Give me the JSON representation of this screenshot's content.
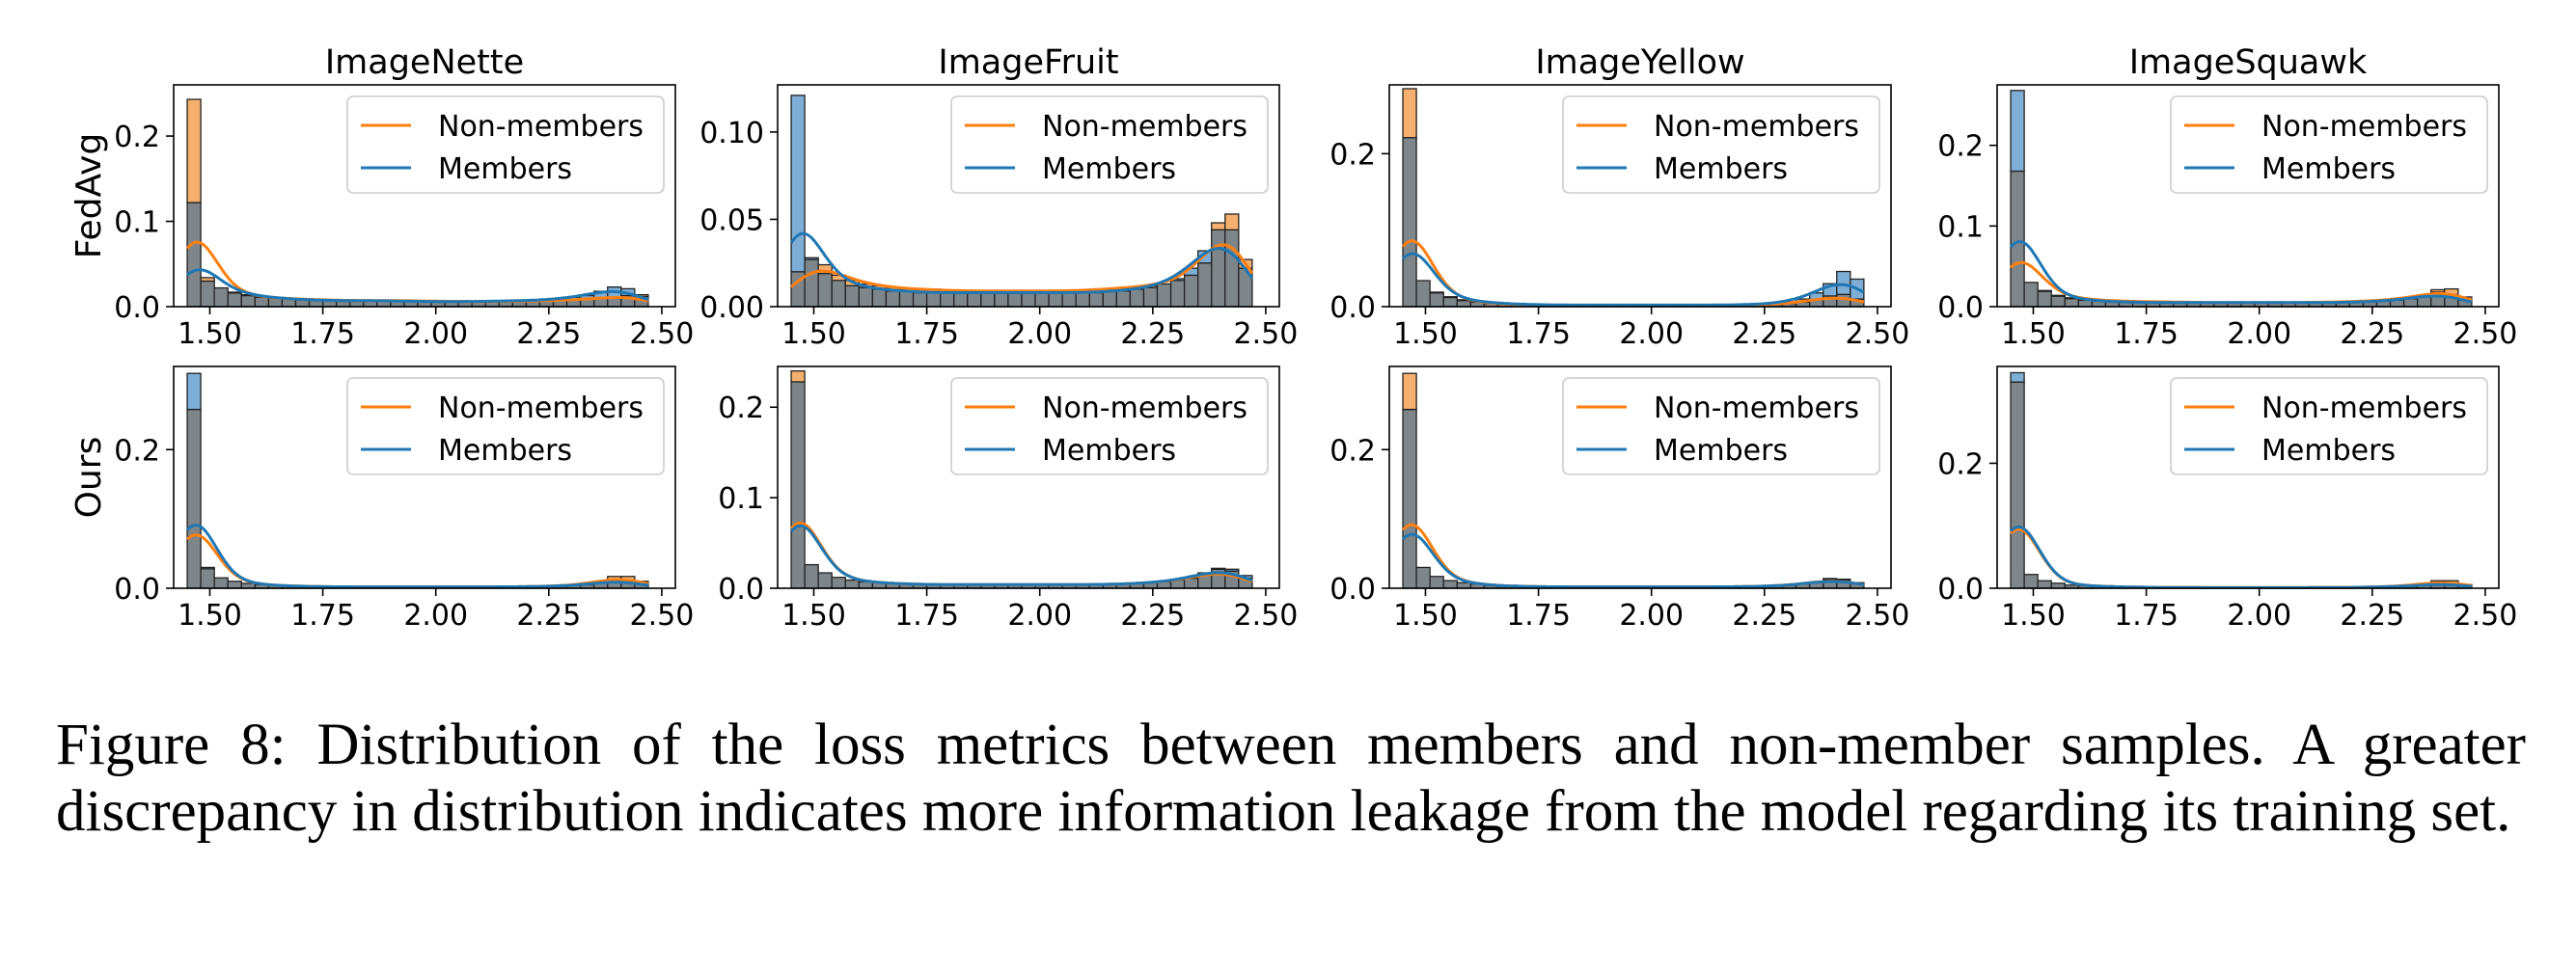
{
  "figure": {
    "column_titles": [
      "ImageNette",
      "ImageFruit",
      "ImageYellow",
      "ImageSquawk"
    ],
    "row_labels": [
      "FedAvg",
      "Ours"
    ],
    "legend": {
      "nonmembers": "Non-members",
      "members": "Members",
      "placement": "top-right"
    },
    "colors": {
      "nonmembers": "#ff7f0e",
      "members": "#1f77b4",
      "overlap": "#7f868a"
    }
  },
  "chart_data": [
    {
      "type": "histogram",
      "title": "ImageNette",
      "row": "FedAvg",
      "xlim": [
        1.42,
        2.53
      ],
      "ylim": [
        0,
        0.26
      ],
      "yticks": [
        0.0,
        0.1,
        0.2
      ],
      "ytick_labels": [
        "0.0",
        "0.1",
        "0.2"
      ],
      "xticks": [
        1.5,
        1.75,
        2.0,
        2.25,
        2.5
      ],
      "xtick_labels": [
        "1.50",
        "1.75",
        "2.00",
        "2.25",
        "2.50"
      ],
      "bin_start": 1.45,
      "bin_width": 0.03,
      "series": [
        {
          "name": "Non-members",
          "values": [
            0.243,
            0.034,
            0.022,
            0.016,
            0.013,
            0.011,
            0.01,
            0.009,
            0.009,
            0.008,
            0.008,
            0.007,
            0.007,
            0.007,
            0.007,
            0.007,
            0.007,
            0.007,
            0.006,
            0.006,
            0.006,
            0.006,
            0.006,
            0.006,
            0.006,
            0.007,
            0.007,
            0.007,
            0.008,
            0.009,
            0.01,
            0.011,
            0.013,
            0.014
          ]
        },
        {
          "name": "Members",
          "values": [
            0.122,
            0.03,
            0.022,
            0.017,
            0.014,
            0.012,
            0.01,
            0.009,
            0.008,
            0.008,
            0.007,
            0.007,
            0.007,
            0.007,
            0.007,
            0.007,
            0.006,
            0.006,
            0.006,
            0.006,
            0.006,
            0.006,
            0.006,
            0.007,
            0.007,
            0.007,
            0.008,
            0.009,
            0.011,
            0.013,
            0.018,
            0.023,
            0.021,
            0.012
          ]
        }
      ]
    },
    {
      "type": "histogram",
      "title": "ImageFruit",
      "row": "FedAvg",
      "xlim": [
        1.42,
        2.53
      ],
      "ylim": [
        0,
        0.127
      ],
      "yticks": [
        0.0,
        0.05,
        0.1
      ],
      "ytick_labels": [
        "0.00",
        "0.05",
        "0.10"
      ],
      "xticks": [
        1.5,
        1.75,
        2.0,
        2.25,
        2.5
      ],
      "xtick_labels": [
        "1.50",
        "1.75",
        "2.00",
        "2.25",
        "2.50"
      ],
      "bin_start": 1.45,
      "bin_width": 0.03,
      "series": [
        {
          "name": "Non-members",
          "values": [
            0.02,
            0.027,
            0.024,
            0.018,
            0.015,
            0.013,
            0.012,
            0.011,
            0.01,
            0.01,
            0.01,
            0.009,
            0.009,
            0.009,
            0.009,
            0.009,
            0.009,
            0.009,
            0.009,
            0.009,
            0.009,
            0.009,
            0.01,
            0.01,
            0.011,
            0.011,
            0.012,
            0.013,
            0.015,
            0.018,
            0.025,
            0.048,
            0.053,
            0.027
          ]
        },
        {
          "name": "Members",
          "values": [
            0.121,
            0.028,
            0.019,
            0.015,
            0.012,
            0.011,
            0.01,
            0.009,
            0.009,
            0.008,
            0.008,
            0.008,
            0.008,
            0.008,
            0.008,
            0.008,
            0.008,
            0.008,
            0.008,
            0.008,
            0.008,
            0.008,
            0.008,
            0.009,
            0.009,
            0.01,
            0.011,
            0.013,
            0.016,
            0.022,
            0.032,
            0.044,
            0.044,
            0.022
          ]
        }
      ]
    },
    {
      "type": "histogram",
      "title": "ImageYellow",
      "row": "FedAvg",
      "xlim": [
        1.42,
        2.53
      ],
      "ylim": [
        0,
        0.29
      ],
      "yticks": [
        0.0,
        0.2
      ],
      "ytick_labels": [
        "0.0",
        "0.2"
      ],
      "xticks": [
        1.5,
        1.75,
        2.0,
        2.25,
        2.5
      ],
      "xtick_labels": [
        "1.50",
        "1.75",
        "2.00",
        "2.25",
        "2.50"
      ],
      "bin_start": 1.45,
      "bin_width": 0.03,
      "series": [
        {
          "name": "Non-members",
          "values": [
            0.285,
            0.034,
            0.018,
            0.012,
            0.008,
            0.006,
            0.004,
            0.003,
            0.003,
            0.002,
            0.002,
            0.002,
            0.002,
            0.002,
            0.002,
            0.002,
            0.002,
            0.002,
            0.002,
            0.002,
            0.002,
            0.002,
            0.002,
            0.002,
            0.002,
            0.002,
            0.003,
            0.003,
            0.004,
            0.006,
            0.009,
            0.014,
            0.016,
            0.01
          ]
        },
        {
          "name": "Members",
          "values": [
            0.221,
            0.034,
            0.019,
            0.013,
            0.009,
            0.006,
            0.005,
            0.004,
            0.003,
            0.003,
            0.002,
            0.002,
            0.002,
            0.002,
            0.002,
            0.002,
            0.002,
            0.002,
            0.002,
            0.002,
            0.002,
            0.002,
            0.002,
            0.002,
            0.002,
            0.003,
            0.003,
            0.004,
            0.006,
            0.01,
            0.018,
            0.03,
            0.046,
            0.036
          ]
        }
      ]
    },
    {
      "type": "histogram",
      "title": "ImageSquawk",
      "row": "FedAvg",
      "xlim": [
        1.42,
        2.53
      ],
      "ylim": [
        0,
        0.275
      ],
      "yticks": [
        0.0,
        0.1,
        0.2
      ],
      "ytick_labels": [
        "0.0",
        "0.1",
        "0.2"
      ],
      "xticks": [
        1.5,
        1.75,
        2.0,
        2.25,
        2.5
      ],
      "xtick_labels": [
        "1.50",
        "1.75",
        "2.00",
        "2.25",
        "2.50"
      ],
      "bin_start": 1.45,
      "bin_width": 0.03,
      "series": [
        {
          "name": "Non-members",
          "values": [
            0.168,
            0.03,
            0.02,
            0.014,
            0.011,
            0.009,
            0.008,
            0.007,
            0.007,
            0.006,
            0.006,
            0.006,
            0.006,
            0.005,
            0.005,
            0.005,
            0.005,
            0.005,
            0.005,
            0.005,
            0.005,
            0.005,
            0.005,
            0.006,
            0.006,
            0.006,
            0.007,
            0.008,
            0.009,
            0.011,
            0.014,
            0.021,
            0.022,
            0.012
          ]
        },
        {
          "name": "Members",
          "values": [
            0.268,
            0.03,
            0.019,
            0.013,
            0.01,
            0.008,
            0.007,
            0.006,
            0.006,
            0.005,
            0.005,
            0.005,
            0.005,
            0.005,
            0.005,
            0.005,
            0.005,
            0.005,
            0.005,
            0.005,
            0.005,
            0.005,
            0.005,
            0.005,
            0.005,
            0.006,
            0.006,
            0.007,
            0.008,
            0.01,
            0.013,
            0.018,
            0.015,
            0.008
          ]
        }
      ]
    },
    {
      "type": "histogram",
      "title": "",
      "row": "Ours",
      "xlim": [
        1.42,
        2.53
      ],
      "ylim": [
        0,
        0.32
      ],
      "yticks": [
        0.0,
        0.2
      ],
      "ytick_labels": [
        "0.0",
        "0.2"
      ],
      "xticks": [
        1.5,
        1.75,
        2.0,
        2.25,
        2.5
      ],
      "xtick_labels": [
        "1.50",
        "1.75",
        "2.00",
        "2.25",
        "2.50"
      ],
      "bin_start": 1.45,
      "bin_width": 0.03,
      "series": [
        {
          "name": "Non-members",
          "values": [
            0.258,
            0.028,
            0.015,
            0.01,
            0.007,
            0.005,
            0.004,
            0.003,
            0.003,
            0.002,
            0.002,
            0.002,
            0.002,
            0.002,
            0.002,
            0.002,
            0.002,
            0.002,
            0.002,
            0.002,
            0.002,
            0.002,
            0.002,
            0.002,
            0.002,
            0.002,
            0.003,
            0.003,
            0.004,
            0.006,
            0.01,
            0.017,
            0.017,
            0.01
          ]
        },
        {
          "name": "Members",
          "values": [
            0.31,
            0.03,
            0.015,
            0.01,
            0.007,
            0.005,
            0.004,
            0.003,
            0.003,
            0.002,
            0.002,
            0.002,
            0.002,
            0.002,
            0.002,
            0.002,
            0.002,
            0.002,
            0.002,
            0.002,
            0.002,
            0.002,
            0.002,
            0.002,
            0.002,
            0.002,
            0.003,
            0.003,
            0.004,
            0.005,
            0.008,
            0.012,
            0.011,
            0.006
          ]
        }
      ]
    },
    {
      "type": "histogram",
      "title": "",
      "row": "Ours",
      "xlim": [
        1.42,
        2.53
      ],
      "ylim": [
        0,
        0.245
      ],
      "yticks": [
        0.0,
        0.1,
        0.2
      ],
      "ytick_labels": [
        "0.0",
        "0.1",
        "0.2"
      ],
      "xticks": [
        1.5,
        1.75,
        2.0,
        2.25,
        2.5
      ],
      "xtick_labels": [
        "1.50",
        "1.75",
        "2.00",
        "2.25",
        "2.50"
      ],
      "bin_start": 1.45,
      "bin_width": 0.03,
      "series": [
        {
          "name": "Non-members",
          "values": [
            0.24,
            0.026,
            0.017,
            0.012,
            0.009,
            0.007,
            0.006,
            0.005,
            0.005,
            0.004,
            0.004,
            0.004,
            0.004,
            0.004,
            0.004,
            0.004,
            0.004,
            0.004,
            0.004,
            0.004,
            0.004,
            0.004,
            0.004,
            0.004,
            0.005,
            0.005,
            0.006,
            0.007,
            0.009,
            0.011,
            0.015,
            0.021,
            0.019,
            0.011
          ]
        },
        {
          "name": "Members",
          "values": [
            0.228,
            0.026,
            0.017,
            0.012,
            0.009,
            0.007,
            0.006,
            0.005,
            0.005,
            0.004,
            0.004,
            0.004,
            0.004,
            0.004,
            0.004,
            0.004,
            0.004,
            0.004,
            0.004,
            0.004,
            0.004,
            0.004,
            0.004,
            0.004,
            0.005,
            0.005,
            0.006,
            0.007,
            0.009,
            0.012,
            0.017,
            0.022,
            0.021,
            0.014
          ]
        }
      ]
    },
    {
      "type": "histogram",
      "title": "",
      "row": "Ours",
      "xlim": [
        1.42,
        2.53
      ],
      "ylim": [
        0,
        0.32
      ],
      "yticks": [
        0.0,
        0.2
      ],
      "ytick_labels": [
        "0.0",
        "0.2"
      ],
      "xticks": [
        1.5,
        1.75,
        2.0,
        2.25,
        2.5
      ],
      "xtick_labels": [
        "1.50",
        "1.75",
        "2.00",
        "2.25",
        "2.50"
      ],
      "bin_start": 1.45,
      "bin_width": 0.03,
      "series": [
        {
          "name": "Non-members",
          "values": [
            0.31,
            0.03,
            0.017,
            0.011,
            0.008,
            0.006,
            0.004,
            0.003,
            0.003,
            0.002,
            0.002,
            0.002,
            0.002,
            0.002,
            0.002,
            0.002,
            0.002,
            0.002,
            0.002,
            0.002,
            0.002,
            0.002,
            0.002,
            0.002,
            0.002,
            0.002,
            0.003,
            0.003,
            0.004,
            0.006,
            0.009,
            0.014,
            0.013,
            0.007
          ]
        },
        {
          "name": "Members",
          "values": [
            0.258,
            0.03,
            0.017,
            0.011,
            0.008,
            0.006,
            0.004,
            0.003,
            0.003,
            0.002,
            0.002,
            0.002,
            0.002,
            0.002,
            0.002,
            0.002,
            0.002,
            0.002,
            0.002,
            0.002,
            0.002,
            0.002,
            0.002,
            0.002,
            0.002,
            0.002,
            0.003,
            0.003,
            0.004,
            0.006,
            0.009,
            0.013,
            0.012,
            0.008
          ]
        }
      ]
    },
    {
      "type": "histogram",
      "title": "",
      "row": "Ours",
      "xlim": [
        1.42,
        2.53
      ],
      "ylim": [
        0,
        0.355
      ],
      "yticks": [
        0.0,
        0.2
      ],
      "ytick_labels": [
        "0.0",
        "0.2"
      ],
      "xticks": [
        1.5,
        1.75,
        2.0,
        2.25,
        2.5
      ],
      "xtick_labels": [
        "1.50",
        "1.75",
        "2.00",
        "2.25",
        "2.50"
      ],
      "bin_start": 1.45,
      "bin_width": 0.03,
      "series": [
        {
          "name": "Non-members",
          "values": [
            0.33,
            0.022,
            0.012,
            0.008,
            0.005,
            0.004,
            0.003,
            0.002,
            0.002,
            0.002,
            0.001,
            0.001,
            0.001,
            0.001,
            0.001,
            0.001,
            0.001,
            0.001,
            0.001,
            0.001,
            0.001,
            0.001,
            0.001,
            0.001,
            0.001,
            0.001,
            0.002,
            0.002,
            0.003,
            0.004,
            0.007,
            0.012,
            0.012,
            0.006
          ]
        },
        {
          "name": "Members",
          "values": [
            0.345,
            0.022,
            0.012,
            0.008,
            0.005,
            0.004,
            0.003,
            0.002,
            0.002,
            0.002,
            0.001,
            0.001,
            0.001,
            0.001,
            0.001,
            0.001,
            0.001,
            0.001,
            0.001,
            0.001,
            0.001,
            0.001,
            0.001,
            0.001,
            0.001,
            0.001,
            0.002,
            0.002,
            0.003,
            0.003,
            0.005,
            0.008,
            0.008,
            0.004
          ]
        }
      ]
    }
  ],
  "caption": "Figure 8: Distribution of the loss metrics between members and non-member samples. A greater discrepancy in distribution indicates more information leakage from the model regarding its training set."
}
